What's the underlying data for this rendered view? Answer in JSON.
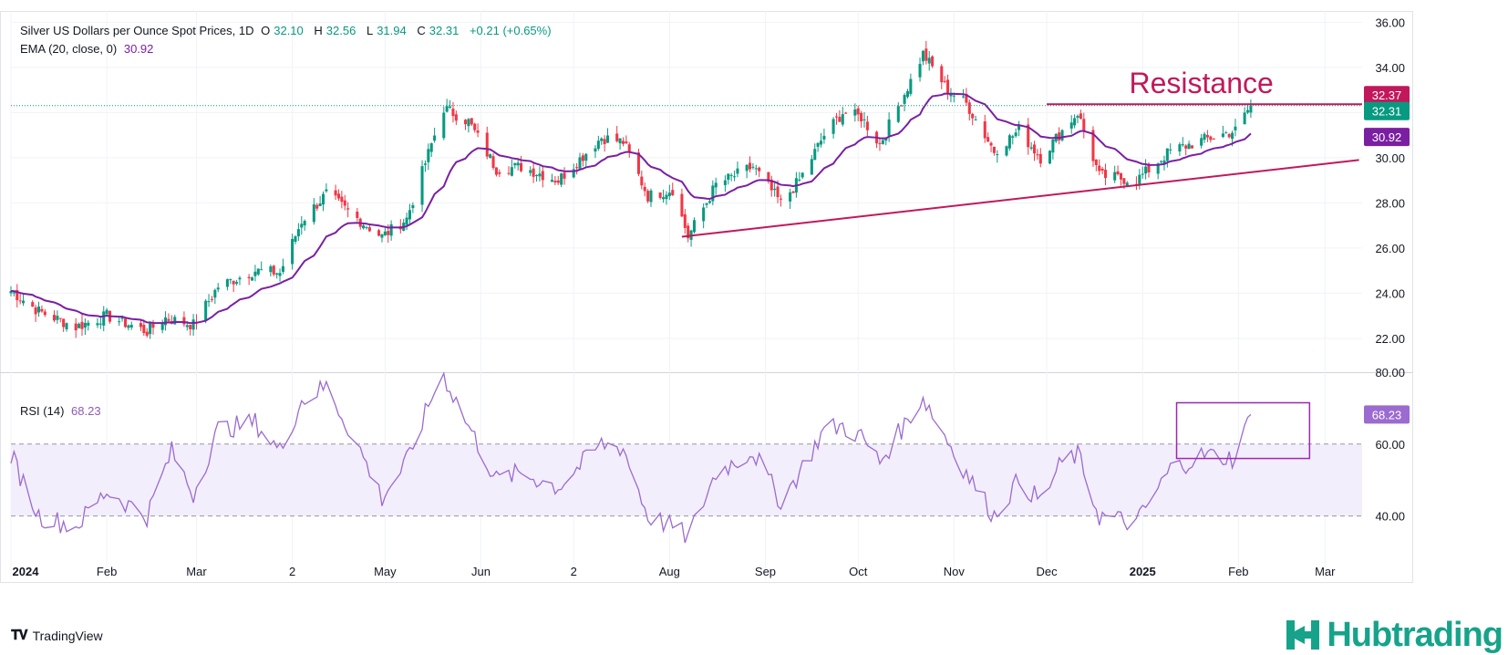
{
  "header": {
    "symbol": "Silver US Dollars per Ounce Spot Prices, 1D",
    "o_label": "O",
    "o": "32.10",
    "h_label": "H",
    "h": "32.56",
    "l_label": "L",
    "l": "31.94",
    "c_label": "C",
    "c": "32.31",
    "change": "+0.21 (+0.65%)"
  },
  "ema_legend": {
    "label": "EMA (20, close, 0)",
    "value": "30.92"
  },
  "rsi_legend": {
    "label": "RSI (14)",
    "value": "68.23"
  },
  "footer": {
    "brand": "TradingView",
    "logo_text": "Hubtrading"
  },
  "colors": {
    "up": "#089981",
    "down": "#f23645",
    "ema": "#7b1fa2",
    "trend": "#c2185b",
    "rsi": "#9b6bd0",
    "rsi_band": "#f3eefb",
    "resistance_label": "#c2185b",
    "watermark": "#16a38a"
  },
  "chart_data": [
    {
      "type": "candlestick",
      "title": "Silver US Dollars per Ounce Spot Prices, 1D",
      "ylim": [
        20.5,
        36.5
      ],
      "y_ticks": [
        "22.00",
        "24.00",
        "26.00",
        "28.00",
        "30.00",
        "32.00",
        "34.00",
        "36.00"
      ],
      "x_ticks": [
        "2024",
        "Feb",
        "Mar",
        "2",
        "May",
        "Jun",
        "2",
        "Aug",
        "Sep",
        "Oct",
        "Nov",
        "Dec",
        "2025",
        "Feb",
        "Mar"
      ],
      "x_tick_dates": [
        "2024-01-01",
        "2024-02-01",
        "2024-03-01",
        "2024-04-01",
        "2024-05-01",
        "2024-06-01",
        "2024-07-01",
        "2024-08-01",
        "2024-09-01",
        "2024-10-01",
        "2024-11-01",
        "2024-12-01",
        "2025-01-01",
        "2025-02-01",
        "2025-03-01"
      ],
      "x_range": [
        "2024-01-01",
        "2025-03-13"
      ],
      "close_anchors": [
        [
          "2024-01-01",
          24.1
        ],
        [
          "2024-01-10",
          23.2
        ],
        [
          "2024-01-22",
          22.5
        ],
        [
          "2024-02-01",
          23.0
        ],
        [
          "2024-02-14",
          22.3
        ],
        [
          "2024-02-20",
          22.9
        ],
        [
          "2024-02-29",
          22.6
        ],
        [
          "2024-03-08",
          24.3
        ],
        [
          "2024-03-20",
          25.0
        ],
        [
          "2024-03-28",
          24.9
        ],
        [
          "2024-04-04",
          27.2
        ],
        [
          "2024-04-12",
          28.4
        ],
        [
          "2024-04-22",
          27.3
        ],
        [
          "2024-04-30",
          26.5
        ],
        [
          "2024-05-08",
          27.3
        ],
        [
          "2024-05-17",
          31.0
        ],
        [
          "2024-05-20",
          32.2
        ],
        [
          "2024-05-28",
          31.6
        ],
        [
          "2024-06-06",
          29.5
        ],
        [
          "2024-06-14",
          29.6
        ],
        [
          "2024-06-26",
          29.0
        ],
        [
          "2024-07-10",
          30.9
        ],
        [
          "2024-07-17",
          30.7
        ],
        [
          "2024-07-25",
          28.3
        ],
        [
          "2024-08-02",
          28.6
        ],
        [
          "2024-08-07",
          26.5
        ],
        [
          "2024-08-16",
          28.8
        ],
        [
          "2024-08-28",
          29.6
        ],
        [
          "2024-09-06",
          28.0
        ],
        [
          "2024-09-12",
          29.0
        ],
        [
          "2024-09-20",
          31.0
        ],
        [
          "2024-09-26",
          32.0
        ],
        [
          "2024-10-02",
          31.8
        ],
        [
          "2024-10-08",
          30.6
        ],
        [
          "2024-10-18",
          33.4
        ],
        [
          "2024-10-22",
          34.6
        ],
        [
          "2024-10-30",
          33.0
        ],
        [
          "2024-11-05",
          32.4
        ],
        [
          "2024-11-14",
          30.3
        ],
        [
          "2024-11-22",
          31.2
        ],
        [
          "2024-11-29",
          30.0
        ],
        [
          "2024-12-06",
          31.2
        ],
        [
          "2024-12-11",
          32.0
        ],
        [
          "2024-12-18",
          29.2
        ],
        [
          "2024-12-30",
          29.0
        ],
        [
          "2025-01-10",
          30.3
        ],
        [
          "2025-01-21",
          30.8
        ],
        [
          "2025-01-31",
          31.2
        ],
        [
          "2025-02-05",
          32.31
        ]
      ],
      "ema": {
        "name": "EMA (20, close, 0)",
        "last": 30.92
      },
      "last_price": 32.31,
      "resistance": {
        "label": "Resistance",
        "value": 32.37,
        "from": "2024-12-01",
        "to": "2025-02-14"
      },
      "trendline": {
        "from": [
          "2024-08-05",
          26.5
        ],
        "to": [
          "2025-03-12",
          29.9
        ]
      },
      "price_labels": [
        {
          "value": "32.37",
          "kind": "resistance"
        },
        {
          "value": "32.31",
          "kind": "last"
        },
        {
          "value": "30.92",
          "kind": "ema"
        }
      ]
    },
    {
      "type": "line",
      "title": "RSI (14)",
      "ylim": [
        30,
        80
      ],
      "y_ticks": [
        "40.00",
        "60.00",
        "80.00"
      ],
      "band": [
        40,
        60
      ],
      "last": 68.23,
      "anchors": [
        [
          "2024-01-01",
          57
        ],
        [
          "2024-01-10",
          40
        ],
        [
          "2024-01-22",
          37
        ],
        [
          "2024-02-01",
          47
        ],
        [
          "2024-02-14",
          40
        ],
        [
          "2024-02-22",
          58
        ],
        [
          "2024-02-29",
          46
        ],
        [
          "2024-03-08",
          64
        ],
        [
          "2024-03-20",
          66
        ],
        [
          "2024-03-28",
          58
        ],
        [
          "2024-04-04",
          72
        ],
        [
          "2024-04-12",
          76
        ],
        [
          "2024-04-22",
          60
        ],
        [
          "2024-04-30",
          45
        ],
        [
          "2024-05-08",
          55
        ],
        [
          "2024-05-17",
          75
        ],
        [
          "2024-05-20",
          79
        ],
        [
          "2024-05-28",
          65
        ],
        [
          "2024-06-06",
          50
        ],
        [
          "2024-06-14",
          52
        ],
        [
          "2024-06-26",
          48
        ],
        [
          "2024-07-10",
          60
        ],
        [
          "2024-07-17",
          59
        ],
        [
          "2024-07-25",
          40
        ],
        [
          "2024-08-02",
          37
        ],
        [
          "2024-08-07",
          34
        ],
        [
          "2024-08-16",
          52
        ],
        [
          "2024-08-28",
          58
        ],
        [
          "2024-09-06",
          44
        ],
        [
          "2024-09-12",
          52
        ],
        [
          "2024-09-20",
          64
        ],
        [
          "2024-09-26",
          65
        ],
        [
          "2024-10-02",
          62
        ],
        [
          "2024-10-08",
          55
        ],
        [
          "2024-10-18",
          68
        ],
        [
          "2024-10-22",
          73
        ],
        [
          "2024-10-30",
          61
        ],
        [
          "2024-11-05",
          52
        ],
        [
          "2024-11-14",
          40
        ],
        [
          "2024-11-22",
          50
        ],
        [
          "2024-11-29",
          44
        ],
        [
          "2024-12-06",
          55
        ],
        [
          "2024-12-11",
          57
        ],
        [
          "2024-12-18",
          40
        ],
        [
          "2024-12-30",
          38
        ],
        [
          "2025-01-10",
          53
        ],
        [
          "2025-01-21",
          57
        ],
        [
          "2025-01-31",
          56
        ],
        [
          "2025-02-05",
          68.23
        ]
      ]
    }
  ]
}
